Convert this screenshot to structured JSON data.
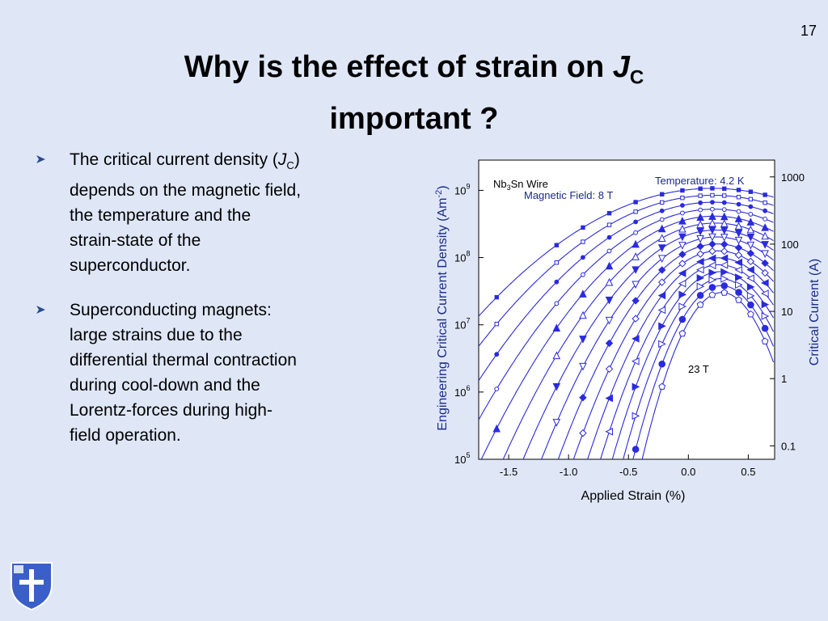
{
  "slide": {
    "number": "17",
    "title_line1": "Why is the effect of strain on ",
    "title_j": "J",
    "title_sub": "C",
    "title_line2": "important ?"
  },
  "bullets": [
    {
      "text_a": "The critical current density (",
      "text_j": "J",
      "text_sub": "C",
      "text_b": ") depends on the magnetic field, the temperature and the strain-state of the superconductor."
    },
    {
      "text": "Superconducting magnets: large strains due to the differential thermal contraction during cool-down and the Lorentz-forces during high-field operation."
    }
  ],
  "colors": {
    "background": "#dfe7f7",
    "data": "#2a2ae0",
    "axis_label": "#1a2a8a",
    "bullet_marker": "#2a4d8f"
  },
  "chart_data": {
    "type": "line",
    "xlabel": "Applied Strain (%)",
    "ylabel_left": "Engineering Critical Current Density (Am",
    "ylabel_left_sup": "-2",
    "ylabel_left_end": ")",
    "ylabel_right": "Critical Current (A)",
    "xlim": [
      -1.75,
      0.72
    ],
    "ylim_log10": [
      5,
      9.45
    ],
    "x_ticks": [
      -1.5,
      -1.0,
      -0.5,
      0.0,
      0.5
    ],
    "x_tick_labels": [
      "-1.5",
      "-1.0",
      "-0.5",
      "0.0",
      "0.5"
    ],
    "y_left_ticks_exp": [
      5,
      6,
      7,
      8,
      9
    ],
    "y_right_ticks": [
      {
        "label": "1000",
        "log10_jc": 9.2
      },
      {
        "label": "100",
        "log10_jc": 8.2
      },
      {
        "label": "10",
        "log10_jc": 7.2
      },
      {
        "label": "1",
        "log10_jc": 6.2
      },
      {
        "label": "0.1",
        "log10_jc": 5.2
      }
    ],
    "annotations": {
      "sample": "Nb3Sn Wire",
      "temperature": "Temperature: 4.2 K",
      "field_low": "Magnetic Field: 8 T",
      "field_high": "23 T"
    },
    "curve_params": {
      "peak_strain_start": 0.2,
      "peak_strain_end": 0.28,
      "peak_log10_start": 9.03,
      "peak_log10_end": 7.48,
      "curvature_start": 0.5,
      "curvature_end": 5.6
    },
    "series": [
      {
        "marker": "square-filled",
        "field_T": 8
      },
      {
        "marker": "square-open",
        "field_T": 9
      },
      {
        "marker": "circle-small-filled",
        "field_T": 10
      },
      {
        "marker": "circle-small-open",
        "field_T": 11
      },
      {
        "marker": "triangle-up-filled",
        "field_T": 12
      },
      {
        "marker": "triangle-up-open",
        "field_T": 13
      },
      {
        "marker": "triangle-down-filled",
        "field_T": 14
      },
      {
        "marker": "triangle-down-open",
        "field_T": 15
      },
      {
        "marker": "diamond-filled",
        "field_T": 16
      },
      {
        "marker": "diamond-open",
        "field_T": 17
      },
      {
        "marker": "triangle-left-filled",
        "field_T": 18
      },
      {
        "marker": "triangle-left-open",
        "field_T": 19
      },
      {
        "marker": "triangle-right-filled",
        "field_T": 20
      },
      {
        "marker": "triangle-right-open",
        "field_T": 21
      },
      {
        "marker": "circle-filled",
        "field_T": 22
      },
      {
        "marker": "pentagon-open",
        "field_T": 23
      }
    ],
    "sample_strains": [
      -1.6,
      -1.1,
      -0.88,
      -0.66,
      -0.44,
      -0.22,
      -0.05,
      0.1,
      0.2,
      0.3,
      0.42,
      0.52,
      0.64
    ]
  }
}
